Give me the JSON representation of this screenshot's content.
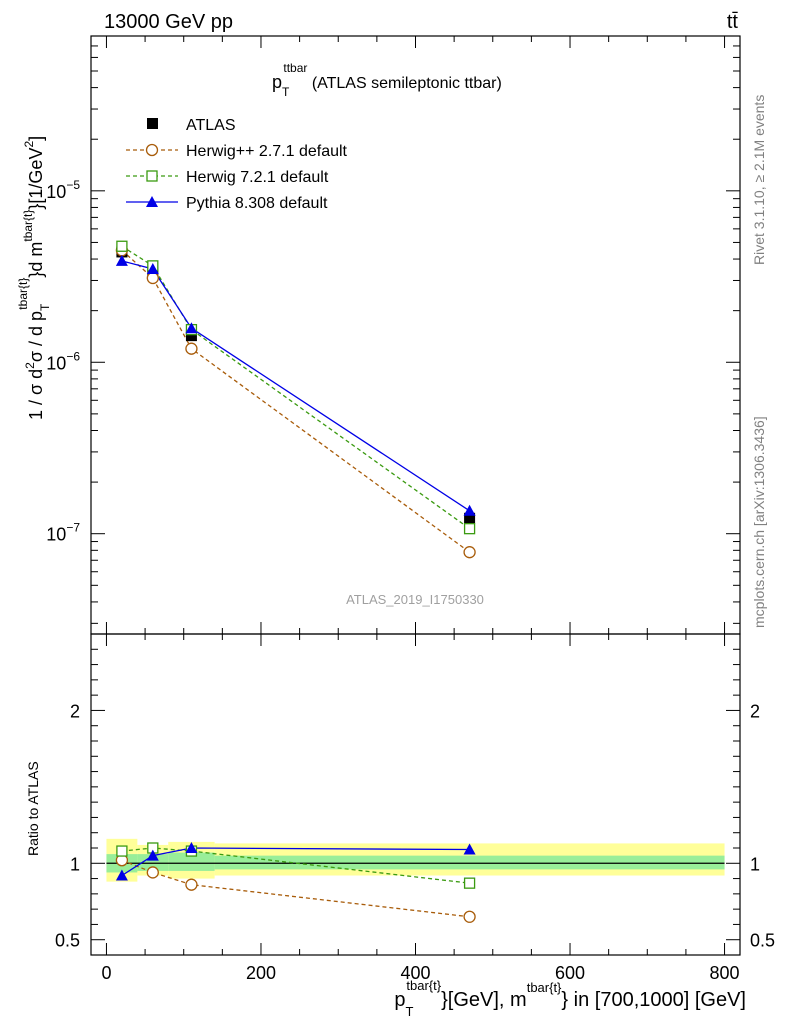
{
  "header": {
    "left": "13000 GeV pp",
    "right": "tt̄"
  },
  "side_labels": {
    "top": "Rivet 3.1.10, ≥ 2.1M events",
    "bottom": "mcplots.cern.ch [arXiv:1306.3436]"
  },
  "watermark": "ATLAS_2019_I1750330",
  "title": {
    "main": "p",
    "sub": "T",
    "sup": "ttbar",
    "rest": " (ATLAS semileptonic ttbar)"
  },
  "ylabel_main": {
    "p1": "1 / σ d",
    "p1sup": "2",
    "p2": "σ /  d p",
    "p2sub": "T",
    "p2sup": "tbar{t}",
    "p3": "}d m",
    "p3sup": "tbar{t}",
    "p4": "}[1/GeV",
    "p4sup": "2",
    "p5": "]"
  },
  "ylabel_ratio": "Ratio to ATLAS",
  "xlabel": {
    "p1": "p",
    "p1sub": "T",
    "p1sup": "tbar{t}",
    "p2": "}[GeV], m",
    "p2sup": "tbar{t}",
    "p3": "} in [700,1000] [GeV]"
  },
  "legend": [
    {
      "label": "ATLAS"
    },
    {
      "label": "Herwig++ 2.7.1 default"
    },
    {
      "label": "Herwig 7.2.1 default"
    },
    {
      "label": "Pythia 8.308 default"
    }
  ],
  "chart_data": [
    {
      "type": "line",
      "panel": "main",
      "yscale": "log",
      "xlim": [
        -20,
        820
      ],
      "ylim": [
        2.6e-08,
        8e-05
      ],
      "y_ticks": [
        {
          "base": "10",
          "exp": "−5",
          "value": 1e-05
        },
        {
          "base": "10",
          "exp": "−6",
          "value": 1e-06
        },
        {
          "base": "10",
          "exp": "−7",
          "value": 1e-07
        }
      ],
      "x": [
        20,
        60,
        110,
        470
      ],
      "series": [
        {
          "name": "ATLAS",
          "values": [
            4.4e-06,
            3.35e-06,
            1.43e-06,
            1.23e-07
          ],
          "color": "#000000",
          "marker": "square-filled",
          "line": "none"
        },
        {
          "name": "Herwig++ 2.7.1 default",
          "values": [
            4.5e-06,
            3.1e-06,
            1.2e-06,
            7.8e-08
          ],
          "color": "#a85c0a",
          "marker": "circle-open",
          "line": "dashed"
        },
        {
          "name": "Herwig 7.2.1 default",
          "values": [
            4.75e-06,
            3.65e-06,
            1.55e-06,
            1.07e-07
          ],
          "color": "#3a9a10",
          "marker": "square-open",
          "line": "dashed"
        },
        {
          "name": "Pythia 8.308 default",
          "values": [
            3.9e-06,
            3.5e-06,
            1.58e-06,
            1.36e-07
          ],
          "color": "#0000e6",
          "marker": "triangle-filled",
          "line": "solid"
        }
      ],
      "grid": false
    },
    {
      "type": "line",
      "panel": "ratio",
      "xlim": [
        -20,
        820
      ],
      "ylim": [
        0.4,
        2.5
      ],
      "x_ticks": [
        0,
        200,
        400,
        600,
        800
      ],
      "y_ticks": [
        0.5,
        1,
        2
      ],
      "x": [
        20,
        60,
        110,
        470
      ],
      "bands": [
        {
          "name": "total uncertainty",
          "color": "#ffff99",
          "bins": [
            [
              0,
              40,
              0.88,
              1.16
            ],
            [
              40,
              80,
              0.92,
              1.12
            ],
            [
              80,
              140,
              0.9,
              1.14
            ],
            [
              140,
              800,
              0.92,
              1.13
            ]
          ]
        },
        {
          "name": "statistical uncertainty",
          "color": "#99ee99",
          "bins": [
            [
              0,
              40,
              0.94,
              1.06
            ],
            [
              40,
              80,
              0.95,
              1.06
            ],
            [
              80,
              140,
              0.95,
              1.07
            ],
            [
              140,
              800,
              0.96,
              1.05
            ]
          ]
        }
      ],
      "series": [
        {
          "name": "Herwig++ 2.7.1 default",
          "values": [
            1.02,
            0.94,
            0.86,
            0.65
          ],
          "color": "#a85c0a",
          "marker": "circle-open",
          "line": "dashed"
        },
        {
          "name": "Herwig 7.2.1 default",
          "values": [
            1.08,
            1.1,
            1.08,
            0.87
          ],
          "color": "#3a9a10",
          "marker": "square-open",
          "line": "dashed"
        },
        {
          "name": "Pythia 8.308 default",
          "values": [
            0.92,
            1.05,
            1.1,
            1.09
          ],
          "color": "#0000e6",
          "marker": "triangle-filled",
          "line": "solid"
        }
      ],
      "reference_line": 1,
      "grid": false
    }
  ]
}
